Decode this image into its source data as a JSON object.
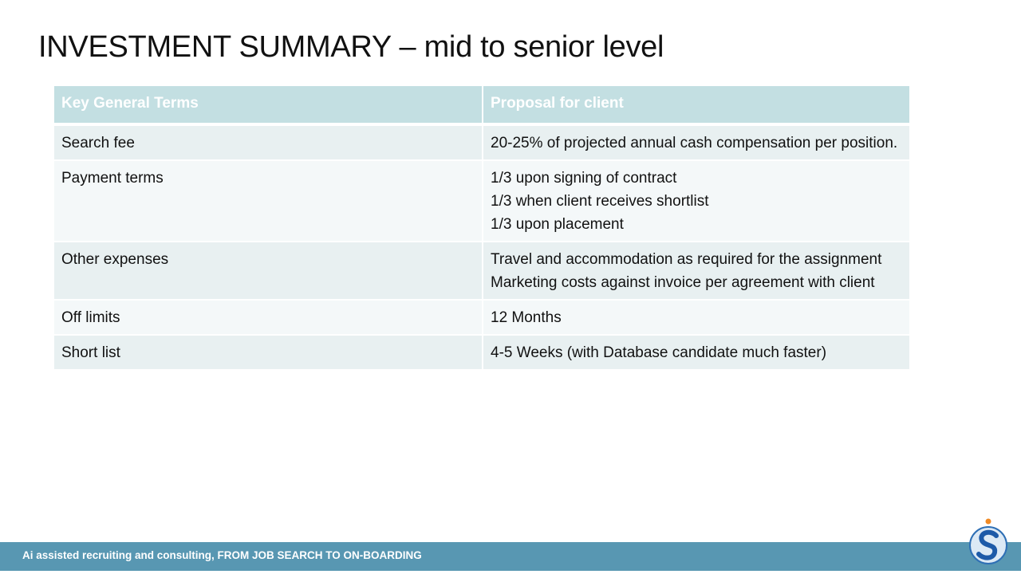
{
  "title": "INVESTMENT SUMMARY – mid to senior level",
  "table": {
    "header": [
      "Key General Terms",
      "Proposal for client"
    ],
    "rows": [
      {
        "term": "Search fee",
        "proposal": [
          "20-25% of projected annual cash compensation per position."
        ]
      },
      {
        "term": "Payment terms",
        "proposal": [
          "1/3 upon signing of contract",
          "1/3 when client receives shortlist",
          "1/3 upon placement"
        ]
      },
      {
        "term": "Other expenses",
        "proposal": [
          "Travel and accommodation as required for the assignment",
          "Marketing costs against invoice per agreement with client"
        ]
      },
      {
        "term": "Off limits",
        "proposal": [
          "12 Months"
        ]
      },
      {
        "term": "Short list",
        "proposal": [
          "4-5 Weeks (with Database candidate much faster)"
        ]
      }
    ]
  },
  "footer": "Ai assisted recruiting and consulting, FROM JOB SEARCH TO ON-BOARDING"
}
